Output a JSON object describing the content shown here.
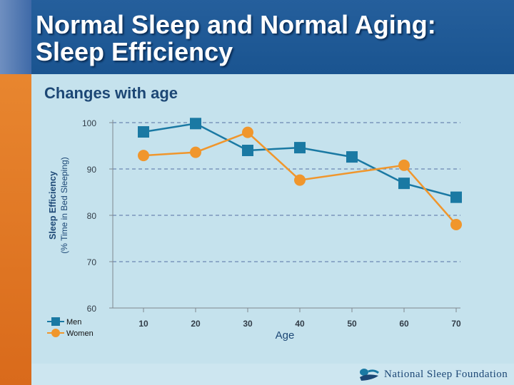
{
  "header": {
    "title_line1": "Normal Sleep and Normal Aging:",
    "title_line2": "Sleep Efficiency"
  },
  "subtitle": "Changes with age",
  "footer": {
    "brand": "National Sleep Foundation",
    "logo_icon": "sleeping-figure-icon"
  },
  "colors": {
    "men": "#1a79a3",
    "women": "#f0962c",
    "gridline": "#5570a3",
    "content_bg": "#c5e2ed",
    "header_bg": "#1c5a96",
    "left_band": "#e07a25"
  },
  "chart_data": {
    "type": "line",
    "ylabel_line1": "Sleep Efficiency",
    "ylabel_line2": "(% Time in Bed Sleeping)",
    "xlabel": "Age",
    "x": [
      10,
      20,
      30,
      40,
      50,
      60,
      70
    ],
    "ylim": [
      60,
      100
    ],
    "yticks": [
      60,
      70,
      80,
      90,
      100
    ],
    "grid": "horizontal dashed",
    "legend_position": "bottom-left",
    "series": [
      {
        "name": "Men",
        "marker": "square",
        "values": [
          98,
          99.8,
          94,
          94.6,
          92.6,
          86.9,
          83.9
        ]
      },
      {
        "name": "Women",
        "marker": "circle",
        "values": [
          92.9,
          93.6,
          97.9,
          87.6,
          null,
          90.8,
          78
        ]
      }
    ]
  }
}
